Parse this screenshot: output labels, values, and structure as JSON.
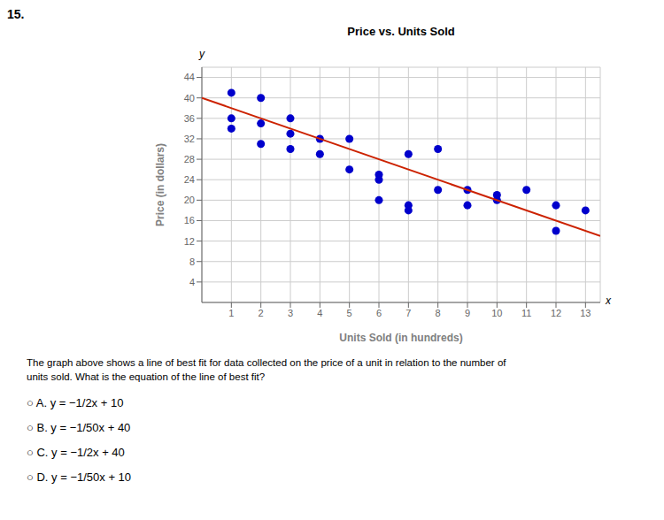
{
  "chart_data": {
    "type": "scatter",
    "title": "Price vs. Units Sold",
    "x_label": "Units Sold (in hundreds)",
    "y_label": "Price (in dollars)",
    "series": [
      {
        "type": "scatter",
        "color": "#0000cc",
        "x": [
          1,
          1,
          1,
          2,
          2,
          2,
          3,
          3,
          3,
          4,
          4,
          5,
          5,
          6,
          6,
          6,
          7,
          7,
          7,
          8,
          8,
          9,
          9,
          10,
          10,
          11,
          12,
          12,
          13
        ],
        "values": [
          41,
          36,
          34,
          40,
          35,
          31,
          36,
          33,
          30,
          32,
          29,
          26,
          32,
          25,
          24,
          20,
          29,
          19,
          18,
          30,
          22,
          22,
          19,
          21,
          20,
          22,
          19,
          14,
          18
        ]
      },
      {
        "type": "line",
        "color": "#cc2200",
        "x": [
          0,
          13.5
        ],
        "values": [
          40,
          13
        ]
      }
    ],
    "xlim": [
      0,
      13.5
    ],
    "ylim": [
      0,
      46
    ],
    "xticks": [
      1,
      2,
      3,
      4,
      5,
      6,
      7,
      8,
      9,
      10,
      11,
      12,
      13
    ],
    "yticks": [
      4,
      8,
      12,
      16,
      20,
      24,
      28,
      32,
      36,
      40,
      44
    ],
    "grid": true,
    "annotations": {
      "question": "15.",
      "x_arrow": "x",
      "y_arrow": "y",
      "problem": [
        "The graph above shows a line of best fit for data collected on the price of a unit in relation to the number of",
        "units sold. What is the equation of the line of best fit?"
      ],
      "choices": [
        "○ A. y = −1/2x + 10",
        "○ B. y = −1/50x + 40",
        "○ C. y = −1/2x + 40",
        "○ D. y = −1/50x + 10"
      ]
    }
  }
}
